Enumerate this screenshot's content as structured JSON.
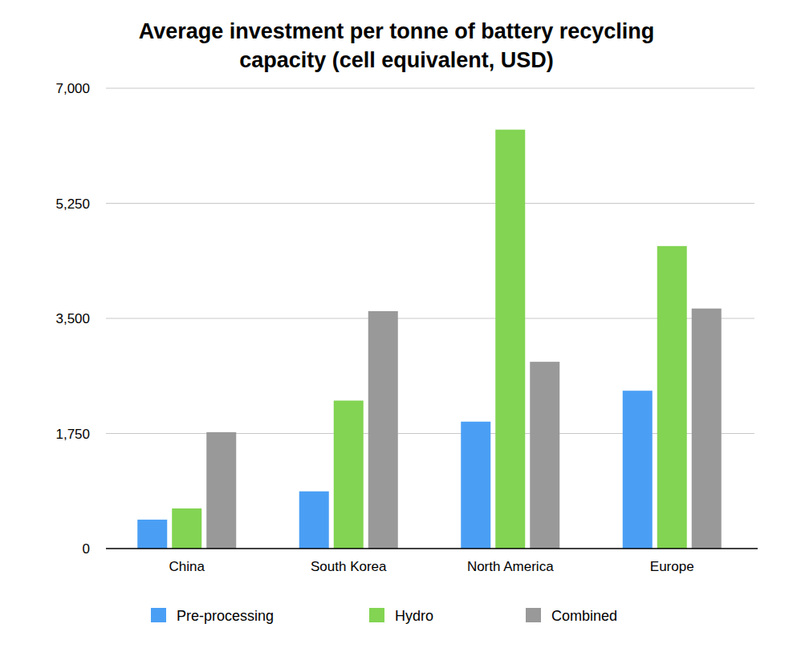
{
  "chart_data": {
    "type": "bar",
    "title": "Average investment per tonne of battery recycling capacity (cell equivalent, USD)",
    "categories": [
      "China",
      "South Korea",
      "North America",
      "Europe"
    ],
    "series": [
      {
        "name": "Pre-processing",
        "color": "#4a9ff5",
        "values": [
          440,
          870,
          1930,
          2400
        ]
      },
      {
        "name": "Hydro",
        "color": "#82d452",
        "values": [
          610,
          2250,
          6370,
          4600
        ]
      },
      {
        "name": "Combined",
        "color": "#999999",
        "values": [
          1770,
          3610,
          2840,
          3650
        ]
      }
    ],
    "ylim": [
      0,
      7000
    ],
    "yticks": [
      0,
      {
        "value": 1750,
        "label": "1,750"
      },
      {
        "value": 3500,
        "label": "3,500"
      },
      {
        "value": 5250,
        "label": "5,250"
      },
      {
        "value": 7000,
        "label": "7,000"
      }
    ],
    "grid": true,
    "legend": "bottom"
  }
}
